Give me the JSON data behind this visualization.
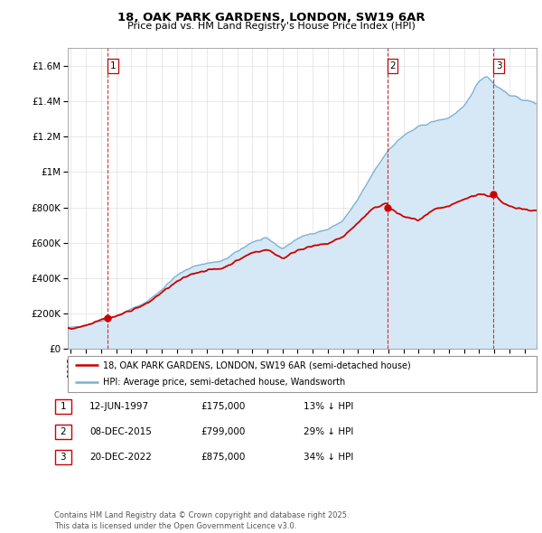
{
  "title_line1": "18, OAK PARK GARDENS, LONDON, SW19 6AR",
  "title_line2": "Price paid vs. HM Land Registry's House Price Index (HPI)",
  "legend_red": "18, OAK PARK GARDENS, LONDON, SW19 6AR (semi-detached house)",
  "legend_blue": "HPI: Average price, semi-detached house, Wandsworth",
  "footer": "Contains HM Land Registry data © Crown copyright and database right 2025.\nThis data is licensed under the Open Government Licence v3.0.",
  "transactions": [
    {
      "num": 1,
      "date": "12-JUN-1997",
      "price": "£175,000",
      "pct": "13% ↓ HPI",
      "year": 1997.45
    },
    {
      "num": 2,
      "date": "08-DEC-2015",
      "price": "£799,000",
      "pct": "29% ↓ HPI",
      "year": 2015.93
    },
    {
      "num": 3,
      "date": "20-DEC-2022",
      "price": "£875,000",
      "pct": "34% ↓ HPI",
      "year": 2022.96
    }
  ],
  "transaction_prices": [
    175000,
    799000,
    875000
  ],
  "red_color": "#cc0000",
  "blue_color": "#7ab0d4",
  "blue_fill": "#d6e8f5",
  "ylim": [
    0,
    1700000
  ],
  "xlim_start": 1994.8,
  "xlim_end": 2025.8
}
